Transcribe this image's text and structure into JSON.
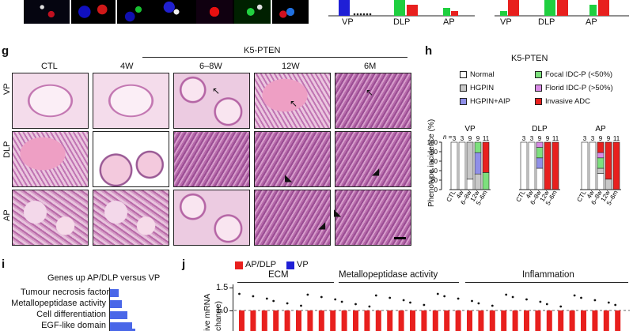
{
  "panels": {
    "g": "g",
    "h": "h",
    "i": "i",
    "j": "j"
  },
  "top_chart": {
    "left_categories": [
      "VP",
      "DLP",
      "AP"
    ],
    "right_categories": [
      "VP",
      "DLP",
      "AP"
    ]
  },
  "g": {
    "group_label": "K5-PTEN",
    "columns": [
      "CTL",
      "4W",
      "6–8W",
      "12W",
      "6M"
    ],
    "rows": [
      "VP",
      "DLP",
      "AP"
    ]
  },
  "h": {
    "title": "K5-PTEN",
    "legend": [
      {
        "label": "Normal",
        "color": "#ffffff"
      },
      {
        "label": "Focal IDC-P (<50%)",
        "color": "#7de07d"
      },
      {
        "label": "HGPIN",
        "color": "#c8c8c8"
      },
      {
        "label": "Florid IDC-P (>50%)",
        "color": "#d98ae6"
      },
      {
        "label": "HGPIN+AIP",
        "color": "#8f8fe8"
      },
      {
        "label": "Invasive ADC",
        "color": "#e8201e"
      }
    ],
    "ylabel": "Phenotype incidence (%)",
    "yticks": [
      "100",
      "80",
      "60",
      "40",
      "20",
      "0"
    ],
    "n_label": "n =",
    "x_categories": [
      "CTL",
      "4w",
      "6–8w",
      "12w",
      "5–6m"
    ]
  },
  "chart_data": [
    {
      "type": "bar",
      "title": "VP",
      "categories": [
        "CTL",
        "4w",
        "6–8w",
        "12w",
        "5–6m"
      ],
      "n": [
        "3",
        "3",
        "9",
        "9",
        "11"
      ],
      "ylabel": "Phenotype incidence (%)",
      "ylim": [
        0,
        100
      ],
      "stacked": true,
      "series": [
        {
          "name": "Normal",
          "values": [
            100,
            100,
            22,
            0,
            0
          ]
        },
        {
          "name": "HGPIN",
          "values": [
            0,
            0,
            78,
            33,
            0
          ]
        },
        {
          "name": "HGPIN+AIP",
          "values": [
            0,
            0,
            0,
            45,
            0
          ]
        },
        {
          "name": "Focal IDC-P (<50%)",
          "values": [
            0,
            0,
            0,
            22,
            36
          ]
        },
        {
          "name": "Florid IDC-P (>50%)",
          "values": [
            0,
            0,
            0,
            0,
            0
          ]
        },
        {
          "name": "Invasive ADC",
          "values": [
            0,
            0,
            0,
            0,
            64
          ]
        }
      ]
    },
    {
      "type": "bar",
      "title": "DLP",
      "categories": [
        "CTL",
        "4w",
        "6–8w",
        "12w",
        "5–6m"
      ],
      "n": [
        "3",
        "3",
        "9",
        "9",
        "11"
      ],
      "ylabel": "Phenotype incidence (%)",
      "ylim": [
        0,
        100
      ],
      "stacked": true,
      "series": [
        {
          "name": "Normal",
          "values": [
            100,
            100,
            45,
            0,
            0
          ]
        },
        {
          "name": "HGPIN",
          "values": [
            0,
            0,
            0,
            0,
            0
          ]
        },
        {
          "name": "HGPIN+AIP",
          "values": [
            0,
            0,
            22,
            0,
            0
          ]
        },
        {
          "name": "Focal IDC-P (<50%)",
          "values": [
            0,
            0,
            22,
            0,
            0
          ]
        },
        {
          "name": "Florid IDC-P (>50%)",
          "values": [
            0,
            0,
            11,
            0,
            0
          ]
        },
        {
          "name": "Invasive ADC",
          "values": [
            0,
            0,
            0,
            100,
            100
          ]
        }
      ]
    },
    {
      "type": "bar",
      "title": "AP",
      "categories": [
        "CTL",
        "4w",
        "6–8w",
        "12w",
        "5–6m"
      ],
      "n": [
        "3",
        "3",
        "9",
        "9",
        "11"
      ],
      "ylabel": "Phenotype incidence (%)",
      "ylim": [
        0,
        100
      ],
      "stacked": true,
      "series": [
        {
          "name": "Normal",
          "values": [
            100,
            100,
            34,
            0,
            0
          ]
        },
        {
          "name": "HGPIN",
          "values": [
            0,
            0,
            11,
            22,
            0
          ]
        },
        {
          "name": "HGPIN+AIP",
          "values": [
            0,
            0,
            0,
            0,
            0
          ]
        },
        {
          "name": "Focal IDC-P (<50%)",
          "values": [
            0,
            0,
            22,
            0,
            0
          ]
        },
        {
          "name": "Florid IDC-P (>50%)",
          "values": [
            0,
            0,
            11,
            0,
            0
          ]
        },
        {
          "name": "Invasive ADC",
          "values": [
            0,
            0,
            22,
            78,
            100
          ]
        }
      ]
    }
  ],
  "i": {
    "title": "Genes up AP/DLP versus VP",
    "terms": [
      "Tumour necrosis factor",
      "Metallopeptidase activity",
      "Cell differentiation",
      "EGF-like domain"
    ]
  },
  "j": {
    "legend": [
      {
        "label": "AP/DLP",
        "color": "#e8201e"
      },
      {
        "label": "VP",
        "color": "#1f1fd6"
      }
    ],
    "groups": [
      "ECM",
      "Metallopeptidase activity",
      "Inflammation"
    ],
    "yticks": [
      "1.5",
      "1.0"
    ],
    "ylabel_partial": "ive mRNA",
    "ylabel_partial2": "change)"
  }
}
